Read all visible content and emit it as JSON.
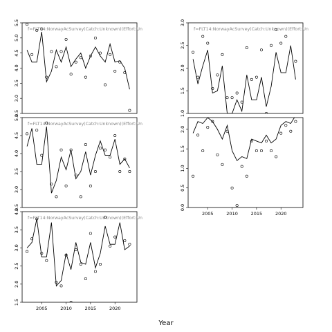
{
  "xlabel": "Year",
  "chart_data": [
    {
      "type": "line",
      "title": "f=FLT14:NorwayAcSurvey(Catch:Unknown)(Effort:Un",
      "xlim": [
        2001.0,
        2024.5
      ],
      "ylim": [
        2.5,
        5.5
      ],
      "yticks": [
        "2.5",
        "3.0",
        "3.5",
        "4.0",
        "4.5",
        "5.0",
        "5.5"
      ],
      "xticks": [],
      "x": [
        2002,
        2003,
        2004,
        2005,
        2006,
        2007,
        2008,
        2009,
        2010,
        2011,
        2012,
        2013,
        2014,
        2015,
        2016,
        2017,
        2018,
        2019,
        2020,
        2021,
        2022,
        2023
      ],
      "series": [
        {
          "role": "observed",
          "style": "points",
          "values": [
            5.45,
            4.45,
            5.25,
            5.3,
            3.7,
            4.55,
            4.05,
            4.55,
            4.95,
            3.8,
            4.2,
            4.35,
            3.7,
            4.4,
            5.0,
            4.5,
            3.45,
            4.45,
            3.9,
            4.2,
            3.85,
            2.6
          ]
        },
        {
          "role": "fitted",
          "style": "line",
          "values": [
            4.6,
            4.2,
            4.2,
            5.2,
            3.55,
            3.9,
            4.6,
            4.2,
            4.7,
            4.05,
            4.3,
            4.5,
            4.0,
            4.4,
            4.7,
            4.4,
            4.2,
            4.8,
            4.2,
            4.25,
            4.0,
            3.3
          ]
        }
      ]
    },
    {
      "type": "line",
      "title": "f=FLT14:NorwayAcSurvey(Catch:Unknown)(Effort:Un",
      "xlim": [
        2001.0,
        2024.5
      ],
      "ylim": [
        2.5,
        5.0
      ],
      "yticks": [
        "2.5",
        "3.0",
        "3.5",
        "4.0",
        "4.5",
        "5.0"
      ],
      "xticks": [],
      "x": [
        2002,
        2003,
        2004,
        2005,
        2006,
        2007,
        2008,
        2009,
        2010,
        2011,
        2012,
        2013,
        2014,
        2015,
        2016,
        2017,
        2018,
        2019,
        2020,
        2021,
        2022,
        2023
      ],
      "series": [
        {
          "role": "observed",
          "style": "points",
          "values": [
            4.55,
            5.05,
            4.65,
            3.95,
            4.85,
            3.15,
            2.8,
            4.1,
            3.1,
            4.1,
            3.4,
            2.8,
            4.25,
            3.1,
            3.5,
            4.15,
            4.1,
            3.9,
            4.5,
            3.5,
            3.85,
            3.5
          ]
        },
        {
          "role": "fitted",
          "style": "line",
          "values": [
            4.2,
            4.7,
            3.7,
            3.7,
            4.75,
            2.9,
            3.25,
            3.9,
            3.55,
            4.1,
            3.3,
            3.5,
            4.05,
            3.4,
            3.95,
            4.35,
            3.95,
            3.95,
            4.4,
            3.7,
            3.85,
            3.6
          ]
        }
      ]
    },
    {
      "type": "line",
      "title": "f=FLT14:NorwayAcSurvey(Catch:Unknown)(Effort:Un",
      "xlim": [
        2001.0,
        2024.5
      ],
      "ylim": [
        1.5,
        4.0
      ],
      "yticks": [
        "1.5",
        "2.0",
        "2.5",
        "3.0",
        "3.5",
        "4.0"
      ],
      "xticks": [
        "2005",
        "2010",
        "2015",
        "2020"
      ],
      "x": [
        2002,
        2003,
        2004,
        2005,
        2006,
        2007,
        2008,
        2009,
        2010,
        2011,
        2012,
        2013,
        2014,
        2015,
        2016,
        2017,
        2018,
        2019,
        2020,
        2021,
        2022,
        2023
      ],
      "series": [
        {
          "role": "observed",
          "style": "points",
          "values": [
            2.9,
            3.25,
            3.8,
            2.85,
            2.65,
            4.05,
            2.05,
            1.95,
            2.8,
            1.5,
            2.95,
            2.55,
            2.15,
            3.4,
            2.35,
            2.55,
            3.85,
            3.05,
            3.3,
            4.05,
            3.2,
            3.1
          ]
        },
        {
          "role": "fitted",
          "style": "line",
          "values": [
            3.0,
            3.15,
            3.8,
            2.75,
            2.75,
            3.7,
            1.95,
            2.1,
            2.85,
            2.4,
            3.15,
            2.6,
            2.55,
            3.15,
            2.45,
            2.85,
            3.6,
            3.1,
            3.1,
            3.7,
            2.95,
            3.05
          ]
        }
      ]
    },
    {
      "type": "line",
      "title": "f=FLT14:NorwayAcSurvey(Catch:Unknown)(Effort:Un",
      "xlim": [
        2001.0,
        2024.5
      ],
      "ylim": [
        1.0,
        3.0
      ],
      "yticks": [
        "1.0",
        "1.5",
        "2.0",
        "2.5",
        "3.0"
      ],
      "xticks": [],
      "x": [
        2002,
        2003,
        2004,
        2005,
        2006,
        2007,
        2008,
        2009,
        2010,
        2011,
        2012,
        2013,
        2014,
        2015,
        2016,
        2017,
        2018,
        2019,
        2020,
        2021,
        2022,
        2023
      ],
      "series": [
        {
          "role": "observed",
          "style": "points",
          "values": [
            2.35,
            1.8,
            2.7,
            2.55,
            1.55,
            1.85,
            2.3,
            1.35,
            1.35,
            1.45,
            1.25,
            2.45,
            1.75,
            1.8,
            2.4,
            1.0,
            2.5,
            2.85,
            2.55,
            2.7,
            3.1,
            2.15
          ]
        },
        {
          "role": "fitted",
          "style": "line",
          "values": [
            2.2,
            1.65,
            2.05,
            2.4,
            1.45,
            1.5,
            2.05,
            1.0,
            1.0,
            1.3,
            1.05,
            1.85,
            1.3,
            1.3,
            1.8,
            1.15,
            1.6,
            2.35,
            1.9,
            1.9,
            2.5,
            1.75
          ]
        }
      ]
    },
    {
      "type": "line",
      "title": "",
      "xlim": [
        2001.0,
        2024.5
      ],
      "ylim": [
        0.0,
        2.3
      ],
      "yticks": [
        "0.0",
        "0.5",
        "1.0",
        "1.5",
        "2.0"
      ],
      "xticks": [
        "2005",
        "2010",
        "2015",
        "2020"
      ],
      "x": [
        2002,
        2003,
        2004,
        2005,
        2006,
        2007,
        2008,
        2009,
        2010,
        2011,
        2012,
        2013,
        2014,
        2015,
        2016,
        2017,
        2018,
        2019,
        2020,
        2021,
        2022,
        2023
      ],
      "series": [
        {
          "role": "observed",
          "style": "points",
          "values": [
            0.8,
            1.85,
            1.45,
            2.05,
            2.2,
            1.35,
            1.1,
            1.95,
            0.5,
            0.05,
            1.05,
            0.8,
            1.7,
            1.45,
            1.45,
            1.7,
            1.45,
            1.3,
            1.9,
            2.1,
            1.95,
            2.2
          ]
        },
        {
          "role": "fitted",
          "style": "line",
          "values": [
            1.9,
            2.2,
            2.15,
            2.3,
            2.2,
            2.0,
            1.75,
            2.1,
            1.45,
            1.2,
            1.3,
            1.25,
            1.75,
            1.7,
            1.65,
            1.85,
            1.65,
            1.75,
            2.1,
            2.2,
            2.15,
            2.35
          ]
        }
      ]
    }
  ]
}
